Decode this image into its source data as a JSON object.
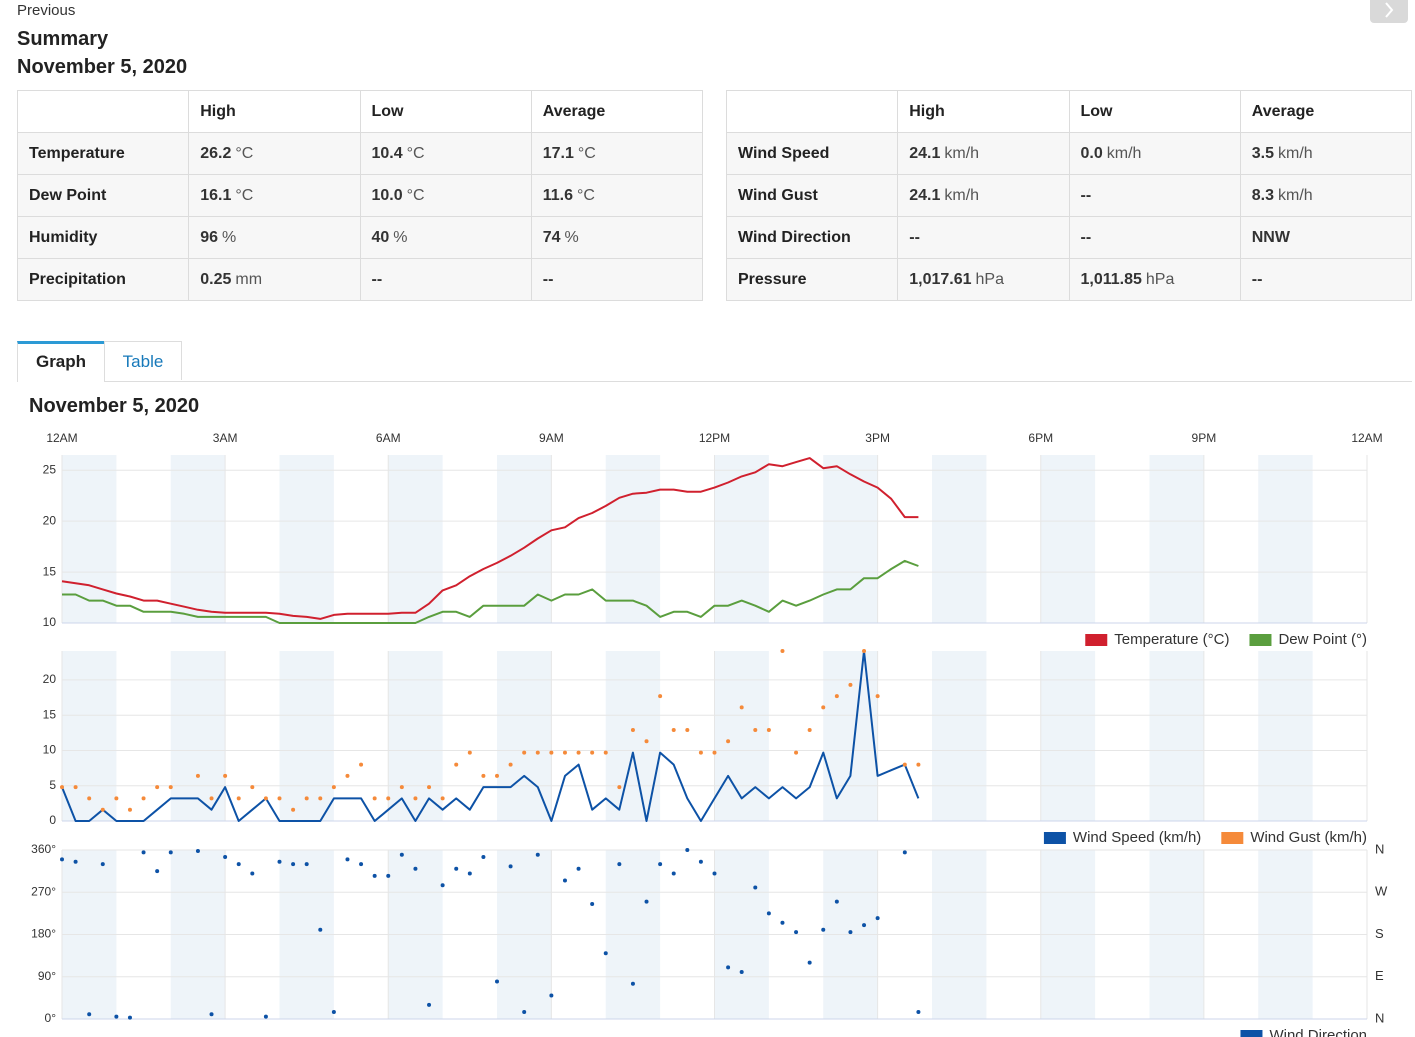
{
  "nav": {
    "previous": "Previous"
  },
  "header": {
    "title": "Summary",
    "date": "November 5, 2020"
  },
  "summary_tables": [
    {
      "columns": [
        "High",
        "Low",
        "Average"
      ],
      "rows": [
        {
          "label": "Temperature",
          "cells": [
            {
              "value": "26.2",
              "unit": "°C"
            },
            {
              "value": "10.4",
              "unit": "°C"
            },
            {
              "value": "17.1",
              "unit": "°C"
            }
          ]
        },
        {
          "label": "Dew Point",
          "cells": [
            {
              "value": "16.1",
              "unit": "°C"
            },
            {
              "value": "10.0",
              "unit": "°C"
            },
            {
              "value": "11.6",
              "unit": "°C"
            }
          ]
        },
        {
          "label": "Humidity",
          "cells": [
            {
              "value": "96",
              "unit": "%"
            },
            {
              "value": "40",
              "unit": "%"
            },
            {
              "value": "74",
              "unit": "%"
            }
          ]
        },
        {
          "label": "Precipitation",
          "cells": [
            {
              "value": "0.25",
              "unit": "mm"
            },
            {
              "value": "--"
            },
            {
              "value": "--"
            }
          ]
        }
      ]
    },
    {
      "columns": [
        "High",
        "Low",
        "Average"
      ],
      "rows": [
        {
          "label": "Wind Speed",
          "cells": [
            {
              "value": "24.1",
              "unit": "km/h"
            },
            {
              "value": "0.0",
              "unit": "km/h"
            },
            {
              "value": "3.5",
              "unit": "km/h"
            }
          ]
        },
        {
          "label": "Wind Gust",
          "cells": [
            {
              "value": "24.1",
              "unit": "km/h"
            },
            {
              "value": "--"
            },
            {
              "value": "8.3",
              "unit": "km/h"
            }
          ]
        },
        {
          "label": "Wind Direction",
          "cells": [
            {
              "value": "--"
            },
            {
              "value": "--"
            },
            {
              "value": "NNW"
            }
          ]
        },
        {
          "label": "Pressure",
          "cells": [
            {
              "value": "1,017.61",
              "unit": "hPa"
            },
            {
              "value": "1,011.85",
              "unit": "hPa"
            },
            {
              "value": "--"
            }
          ]
        }
      ]
    }
  ],
  "tabs": [
    "Graph",
    "Table"
  ],
  "graph_title": "November 5, 2020",
  "chart_data": [
    {
      "type": "line",
      "legend": "bottom-right",
      "grid": true,
      "xlim": [
        0,
        24
      ],
      "xticks": [
        {
          "value": 0,
          "label": "12AM"
        },
        {
          "value": 3,
          "label": "3AM"
        },
        {
          "value": 6,
          "label": "6AM"
        },
        {
          "value": 9,
          "label": "9AM"
        },
        {
          "value": 12,
          "label": "12PM"
        },
        {
          "value": 15,
          "label": "3PM"
        },
        {
          "value": 18,
          "label": "6PM"
        },
        {
          "value": 21,
          "label": "9PM"
        },
        {
          "value": 24,
          "label": "12AM"
        }
      ],
      "ylim": [
        10,
        26.5
      ],
      "yticks": [
        10,
        15,
        20,
        25
      ],
      "x": [
        0,
        0.25,
        0.5,
        0.75,
        1,
        1.25,
        1.5,
        1.75,
        2,
        2.25,
        2.5,
        2.75,
        3,
        3.25,
        3.5,
        3.75,
        4,
        4.25,
        4.5,
        4.75,
        5,
        5.25,
        5.5,
        5.75,
        6,
        6.25,
        6.5,
        6.75,
        7,
        7.25,
        7.5,
        7.75,
        8,
        8.25,
        8.5,
        8.75,
        9,
        9.25,
        9.5,
        9.75,
        10,
        10.25,
        10.5,
        10.75,
        11,
        11.25,
        11.5,
        11.75,
        12,
        12.25,
        12.5,
        12.75,
        13,
        13.25,
        13.5,
        13.75,
        14,
        14.25,
        14.5,
        14.75,
        15,
        15.25,
        15.5,
        15.75
      ],
      "series": [
        {
          "name": "Temperature (°C)",
          "color": "#d0202e",
          "type": "line",
          "values": [
            14.1,
            13.9,
            13.7,
            13.3,
            12.9,
            12.6,
            12.2,
            12.2,
            11.9,
            11.6,
            11.3,
            11.1,
            11.0,
            11.0,
            11.0,
            11.0,
            10.9,
            10.7,
            10.6,
            10.4,
            10.8,
            10.9,
            10.9,
            10.9,
            10.9,
            11.0,
            11.0,
            11.9,
            13.2,
            13.7,
            14.6,
            15.3,
            15.9,
            16.6,
            17.4,
            18.3,
            19.1,
            19.4,
            20.3,
            20.8,
            21.5,
            22.3,
            22.7,
            22.8,
            23.1,
            23.1,
            22.9,
            22.9,
            23.3,
            23.8,
            24.4,
            24.8,
            25.6,
            25.4,
            25.8,
            26.2,
            25.2,
            25.4,
            24.6,
            23.9,
            23.3,
            22.2,
            20.4,
            20.4
          ]
        },
        {
          "name": "Dew Point (°)",
          "color": "#5a9e3e",
          "type": "line",
          "values": [
            12.8,
            12.8,
            12.2,
            12.2,
            11.7,
            11.7,
            11.1,
            11.1,
            11.1,
            10.9,
            10.6,
            10.6,
            10.6,
            10.6,
            10.6,
            10.6,
            10.0,
            10.0,
            10.0,
            10.0,
            10.0,
            10.0,
            10.0,
            10.0,
            10.0,
            10.0,
            10.0,
            10.6,
            11.1,
            11.1,
            10.6,
            11.7,
            11.7,
            11.7,
            11.7,
            12.8,
            12.2,
            12.8,
            12.8,
            13.3,
            12.2,
            12.2,
            12.2,
            11.7,
            10.6,
            11.1,
            11.1,
            10.6,
            11.7,
            11.7,
            12.2,
            11.7,
            11.1,
            12.2,
            11.7,
            12.2,
            12.8,
            13.3,
            13.3,
            14.4,
            14.4,
            15.3,
            16.1,
            15.6
          ]
        }
      ]
    },
    {
      "type": "line",
      "legend": "bottom-right",
      "grid": true,
      "xlim": [
        0,
        24
      ],
      "ylim": [
        0,
        24.1
      ],
      "yticks": [
        0,
        5,
        10,
        15,
        20
      ],
      "x": [
        0,
        0.25,
        0.5,
        0.75,
        1,
        1.25,
        1.5,
        1.75,
        2,
        2.25,
        2.5,
        2.75,
        3,
        3.25,
        3.5,
        3.75,
        4,
        4.25,
        4.5,
        4.75,
        5,
        5.25,
        5.5,
        5.75,
        6,
        6.25,
        6.5,
        6.75,
        7,
        7.25,
        7.5,
        7.75,
        8,
        8.25,
        8.5,
        8.75,
        9,
        9.25,
        9.5,
        9.75,
        10,
        10.25,
        10.5,
        10.75,
        11,
        11.25,
        11.5,
        11.75,
        12,
        12.25,
        12.5,
        12.75,
        13,
        13.25,
        13.5,
        13.75,
        14,
        14.25,
        14.5,
        14.75,
        15,
        15.25,
        15.5,
        15.75
      ],
      "series": [
        {
          "name": "Wind Speed (km/h)",
          "color": "#0d52a6",
          "type": "line",
          "values": [
            4.8,
            0,
            0,
            1.6,
            0,
            0,
            0,
            1.6,
            3.2,
            3.2,
            3.2,
            1.6,
            4.8,
            0,
            1.6,
            3.2,
            0,
            0,
            0,
            0,
            3.2,
            3.2,
            3.2,
            0,
            1.6,
            3.2,
            0,
            3.2,
            1.6,
            3.2,
            1.6,
            4.8,
            4.8,
            4.8,
            6.4,
            4.8,
            0,
            6.4,
            8.0,
            1.6,
            3.2,
            1.6,
            9.7,
            0,
            9.7,
            8.0,
            3.2,
            0,
            3.2,
            6.4,
            3.2,
            4.8,
            3.2,
            4.8,
            3.2,
            4.8,
            9.7,
            3.2,
            6.4,
            24.1,
            6.4,
            7.2,
            8.0,
            3.2
          ]
        },
        {
          "name": "Wind Gust (km/h)",
          "color": "#f58a3a",
          "type": "scatter",
          "values": [
            4.8,
            4.8,
            3.2,
            1.6,
            3.2,
            1.6,
            3.2,
            4.8,
            4.8,
            null,
            6.4,
            3.2,
            6.4,
            3.2,
            4.8,
            3.2,
            3.2,
            1.6,
            3.2,
            3.2,
            4.8,
            6.4,
            8.0,
            3.2,
            3.2,
            4.8,
            3.2,
            4.8,
            3.2,
            8.0,
            9.7,
            6.4,
            6.4,
            8.0,
            9.7,
            9.7,
            9.7,
            9.7,
            9.7,
            9.7,
            9.7,
            4.8,
            12.9,
            11.3,
            17.7,
            12.9,
            12.9,
            9.7,
            9.7,
            11.3,
            16.1,
            12.9,
            12.9,
            24.1,
            9.7,
            12.9,
            16.1,
            17.7,
            19.3,
            24.1,
            17.7,
            null,
            8.0,
            8.0
          ]
        }
      ]
    },
    {
      "type": "scatter",
      "legend": "bottom-right",
      "grid": true,
      "xlim": [
        0,
        24
      ],
      "ylim": [
        0,
        360
      ],
      "yticks": [
        {
          "value": 0,
          "label": "0°"
        },
        {
          "value": 90,
          "label": "90°"
        },
        {
          "value": 180,
          "label": "180°"
        },
        {
          "value": 270,
          "label": "270°"
        },
        {
          "value": 360,
          "label": "360°"
        }
      ],
      "y2lim": [
        0,
        360
      ],
      "y2ticks": [
        {
          "value": 0,
          "label": "N"
        },
        {
          "value": 90,
          "label": "E"
        },
        {
          "value": 180,
          "label": "S"
        },
        {
          "value": 270,
          "label": "W"
        },
        {
          "value": 360,
          "label": "N"
        }
      ],
      "x": [
        0,
        0.25,
        0.5,
        0.75,
        1,
        1.25,
        1.5,
        1.75,
        2,
        2.25,
        2.5,
        2.75,
        3,
        3.25,
        3.5,
        3.75,
        4,
        4.25,
        4.5,
        4.75,
        5,
        5.25,
        5.5,
        5.75,
        6,
        6.25,
        6.5,
        6.75,
        7,
        7.25,
        7.5,
        7.75,
        8,
        8.25,
        8.5,
        8.75,
        9,
        9.25,
        9.5,
        9.75,
        10,
        10.25,
        10.5,
        10.75,
        11,
        11.25,
        11.5,
        11.75,
        12,
        12.25,
        12.5,
        12.75,
        13,
        13.25,
        13.5,
        13.75,
        14,
        14.25,
        14.5,
        14.75,
        15,
        15.25,
        15.5,
        15.75
      ],
      "series": [
        {
          "name": "Wind Direction",
          "color": "#0d52a6",
          "type": "scatter",
          "values": [
            340,
            335,
            10,
            330,
            5,
            3,
            355,
            315,
            355,
            null,
            358,
            10,
            345,
            330,
            310,
            5,
            335,
            330,
            330,
            190,
            15,
            340,
            330,
            305,
            305,
            350,
            320,
            30,
            285,
            320,
            310,
            345,
            80,
            325,
            15,
            350,
            50,
            295,
            320,
            245,
            140,
            330,
            75,
            250,
            330,
            310,
            360,
            335,
            310,
            110,
            100,
            280,
            225,
            205,
            185,
            120,
            190,
            250,
            185,
            200,
            215,
            null,
            355,
            15
          ]
        }
      ]
    }
  ]
}
